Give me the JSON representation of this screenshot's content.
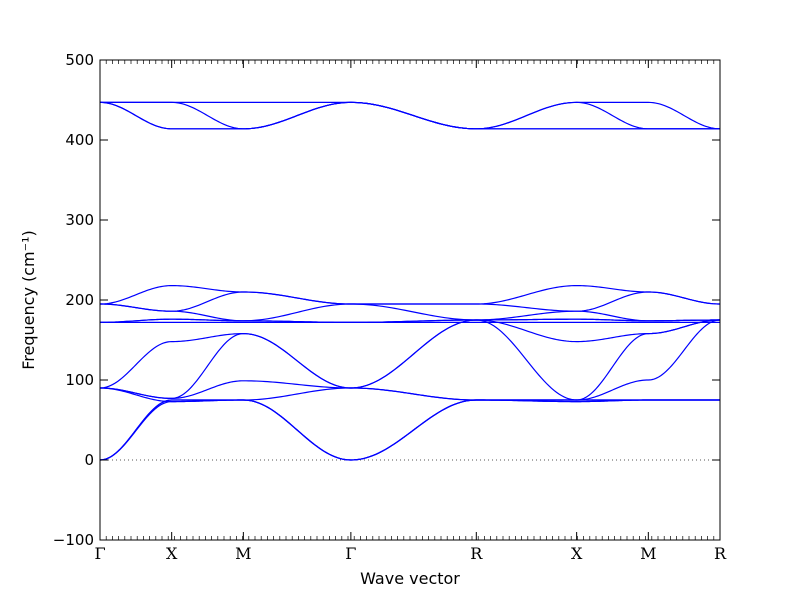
{
  "chart_data": {
    "type": "line",
    "title": "",
    "xlabel": "Wave vector",
    "ylabel": "Frequency (cm⁻¹)",
    "ylim": [
      -100,
      500
    ],
    "yticks": [
      -100,
      0,
      100,
      200,
      300,
      400,
      500
    ],
    "ytick_labels": [
      "−100",
      "0",
      "100",
      "200",
      "300",
      "400",
      "500"
    ],
    "x": [
      0,
      1,
      2,
      3.5,
      5.25,
      6.65,
      7.65,
      8.65
    ],
    "xticks": [
      "Γ",
      "X",
      "M",
      "Γ",
      "R",
      "X",
      "M",
      "R"
    ],
    "zero_line": true,
    "grid": false,
    "line_color": "#0000ff",
    "series": [
      {
        "values": [
          0,
          75,
          75,
          0,
          75,
          75,
          75,
          75
        ]
      },
      {
        "values": [
          0,
          75,
          75,
          0,
          75,
          75,
          75,
          75
        ]
      },
      {
        "values": [
          0,
          73,
          75,
          0,
          75,
          73,
          75,
          75
        ]
      },
      {
        "values": [
          90,
          73,
          75,
          90,
          75,
          73,
          75,
          75
        ]
      },
      {
        "values": [
          90,
          77,
          99,
          90,
          75,
          75,
          100,
          175
        ]
      },
      {
        "values": [
          90,
          148,
          158,
          90,
          175,
          148,
          158,
          175
        ]
      },
      {
        "values": [
          90,
          77,
          158,
          90,
          175,
          75,
          158,
          175
        ]
      },
      {
        "values": [
          172,
          172,
          172,
          172,
          172,
          172,
          172,
          172
        ]
      },
      {
        "values": [
          172,
          176,
          174,
          172,
          175,
          176,
          174,
          175
        ]
      },
      {
        "values": [
          172,
          176,
          174,
          172,
          175,
          176,
          174,
          175
        ]
      },
      {
        "values": [
          195,
          186,
          174,
          195,
          175,
          186,
          174,
          175
        ]
      },
      {
        "values": [
          195,
          186,
          210,
          195,
          195,
          186,
          210,
          195
        ]
      },
      {
        "values": [
          195,
          218,
          210,
          195,
          195,
          218,
          210,
          195
        ]
      },
      {
        "values": [
          447,
          414,
          414,
          447,
          414,
          414,
          414,
          414
        ]
      },
      {
        "values": [
          447,
          414,
          414,
          447,
          414,
          414,
          414,
          414
        ]
      },
      {
        "values": [
          447,
          447,
          414,
          447,
          414,
          447,
          414,
          414
        ]
      },
      {
        "values": [
          447,
          447,
          447,
          447,
          414,
          447,
          447,
          414
        ]
      }
    ]
  }
}
